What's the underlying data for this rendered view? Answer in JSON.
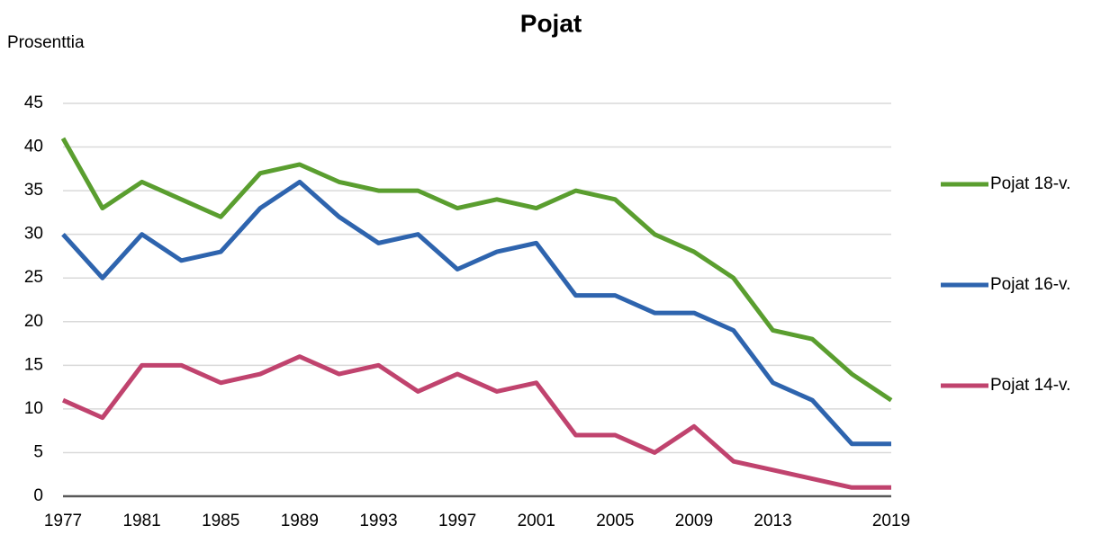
{
  "chart_data": {
    "type": "line",
    "title": "Pojat",
    "y_label": "Prosenttia",
    "x": [
      1977,
      1979,
      1981,
      1983,
      1985,
      1987,
      1989,
      1991,
      1993,
      1995,
      1997,
      1999,
      2001,
      2003,
      2005,
      2007,
      2009,
      2011,
      2013,
      2015,
      2017,
      2019
    ],
    "xlim": [
      1977,
      2019
    ],
    "xticks": [
      1977,
      1981,
      1985,
      1989,
      1993,
      1997,
      2001,
      2005,
      2009,
      2013,
      2019
    ],
    "ylim": [
      0,
      45
    ],
    "yticks": [
      0,
      5,
      10,
      15,
      20,
      25,
      30,
      35,
      40,
      45
    ],
    "grid": true,
    "legend": "right",
    "series": [
      {
        "name": "Pojat 18-v.",
        "color": "#5a9e2f",
        "values": [
          41,
          33,
          36,
          34,
          32,
          37,
          38,
          36,
          35,
          35,
          33,
          34,
          33,
          35,
          34,
          30,
          28,
          25,
          19,
          18,
          14,
          11
        ]
      },
      {
        "name": "Pojat 16-v.",
        "color": "#2e64ae",
        "values": [
          30,
          25,
          30,
          27,
          28,
          33,
          36,
          32,
          29,
          30,
          26,
          28,
          29,
          23,
          23,
          21,
          21,
          19,
          13,
          11,
          6,
          6
        ]
      },
      {
        "name": "Pojat 14-v.",
        "color": "#c0436e",
        "values": [
          11,
          9,
          15,
          15,
          13,
          14,
          16,
          14,
          15,
          12,
          14,
          12,
          13,
          7,
          7,
          5,
          8,
          4,
          3,
          2,
          1,
          1
        ]
      }
    ]
  }
}
